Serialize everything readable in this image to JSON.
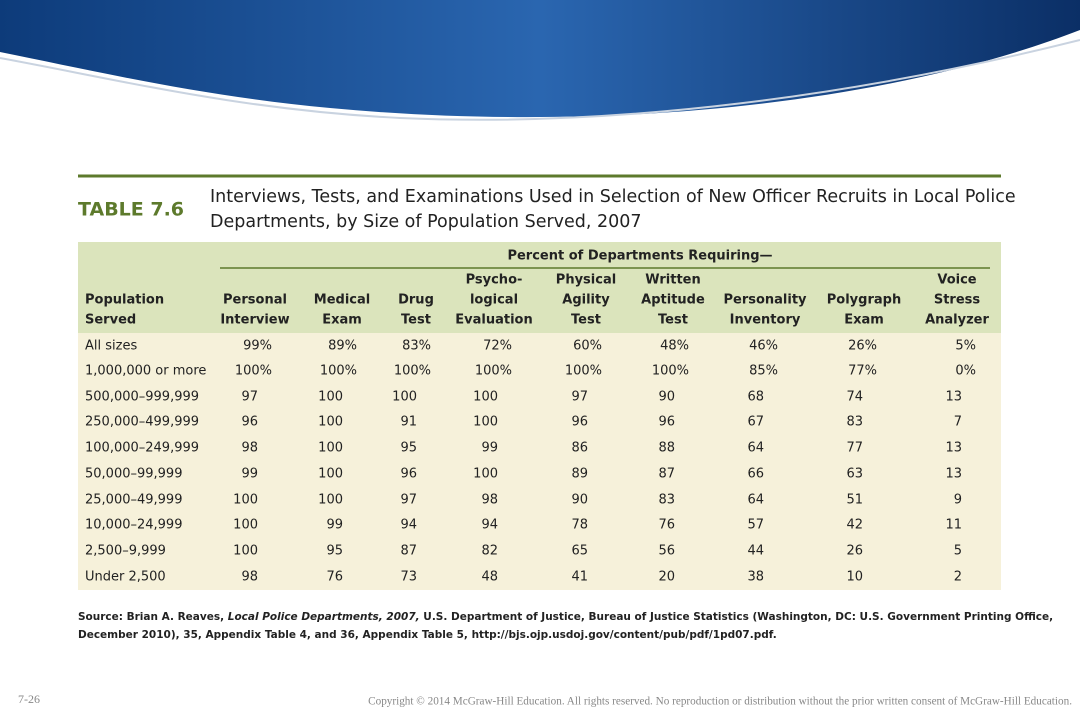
{
  "table": {
    "label": "TABLE 7.6",
    "title": [
      "Interviews, Tests, and Examinations Used in Selection of New Officer Recruits in Local Police",
      "Departments, by Size of Population Served, 2007"
    ],
    "group_header": "Percent of Departments Requiring—",
    "row_header": [
      "Population",
      "Served"
    ],
    "columns": [
      [
        "Personal",
        "Interview"
      ],
      [
        "Medical",
        "Exam"
      ],
      [
        "Drug",
        "Test"
      ],
      [
        "Psycho-",
        "logical",
        "Evaluation"
      ],
      [
        "Physical",
        "Agility",
        "Test"
      ],
      [
        "Written",
        "Aptitude",
        "Test"
      ],
      [
        "Personality",
        "Inventory"
      ],
      [
        "Polygraph",
        "Exam"
      ],
      [
        "Voice",
        "Stress",
        "Analyzer"
      ]
    ],
    "rows": [
      [
        "All sizes",
        "99%",
        "89%",
        "83%",
        "72%",
        "60%",
        "48%",
        "46%",
        "26%",
        "5%"
      ],
      [
        "1,000,000 or more",
        "100%",
        "100%",
        "100%",
        "100%",
        "100%",
        "100%",
        "85%",
        "77%",
        "0%"
      ],
      [
        "500,000–999,999",
        "97",
        "100",
        "100",
        "100",
        "97",
        "90",
        "68",
        "74",
        "13"
      ],
      [
        "250,000–499,999",
        "96",
        "100",
        "91",
        "100",
        "96",
        "96",
        "67",
        "83",
        "7"
      ],
      [
        "100,000–249,999",
        "98",
        "100",
        "95",
        "99",
        "86",
        "88",
        "64",
        "77",
        "13"
      ],
      [
        "50,000–99,999",
        "99",
        "100",
        "96",
        "100",
        "89",
        "87",
        "66",
        "63",
        "13"
      ],
      [
        "25,000–49,999",
        "100",
        "100",
        "97",
        "98",
        "90",
        "83",
        "64",
        "51",
        "9"
      ],
      [
        "10,000–24,999",
        "100",
        "99",
        "94",
        "94",
        "78",
        "76",
        "57",
        "42",
        "11"
      ],
      [
        "2,500–9,999",
        "100",
        "95",
        "87",
        "82",
        "65",
        "56",
        "44",
        "26",
        "5"
      ],
      [
        "Under 2,500",
        "98",
        "76",
        "73",
        "48",
        "41",
        "20",
        "38",
        "10",
        "2"
      ]
    ]
  },
  "source": {
    "line1": [
      "Source: Brian A. Reaves, ",
      "Local Police Departments, 2007,",
      " U.S. Department of Justice, Bureau of Justice Statistics (Washington, DC: U.S. Government Printing Office,"
    ],
    "line2": "December 2010), 35, Appendix Table 4, and 36, Appendix Table 5, http://bjs.ojp.usdoj.gov/content/pub/pdf/1pd07.pdf."
  },
  "footer": {
    "slide_number": "7-26",
    "copyright": "Copyright © 2014 McGraw-Hill Education. All rights reserved. No reproduction or distribution without the prior written consent of McGraw-Hill Education."
  }
}
